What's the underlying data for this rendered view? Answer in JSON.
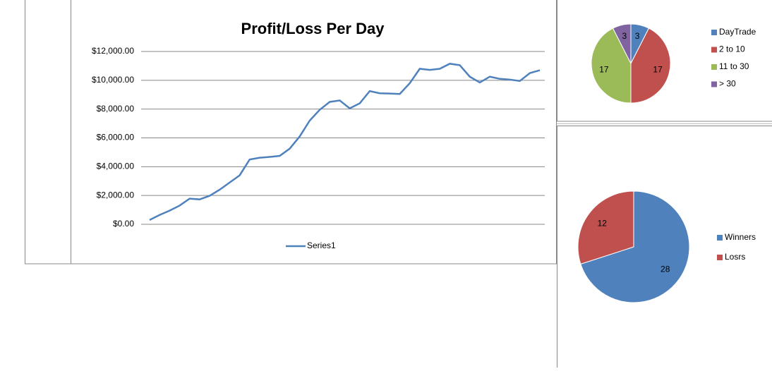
{
  "chart_data": [
    {
      "type": "line",
      "title": "Profit/Loss Per Day",
      "series": [
        {
          "name": "Series1",
          "color": "#4f81bd",
          "values": [
            300,
            650,
            950,
            1300,
            1780,
            1730,
            1980,
            2400,
            2900,
            3400,
            4500,
            4620,
            4680,
            4750,
            5250,
            6100,
            7200,
            7950,
            8500,
            8600,
            8050,
            8400,
            9250,
            9100,
            9080,
            9050,
            9800,
            10800,
            10720,
            10800,
            11150,
            11050,
            10250,
            9850,
            10250,
            10100,
            10050,
            9950,
            10500,
            10700
          ]
        }
      ],
      "ylim": [
        0,
        12000
      ],
      "yticks": [
        {
          "value": 0,
          "label": "$0.00"
        },
        {
          "value": 2000,
          "label": "$2,000.00"
        },
        {
          "value": 4000,
          "label": "$4,000.00"
        },
        {
          "value": 6000,
          "label": "$6,000.00"
        },
        {
          "value": 8000,
          "label": "$8,000.00"
        },
        {
          "value": 10000,
          "label": "$10,000.00"
        },
        {
          "value": 12000,
          "label": "$12,000.00"
        }
      ],
      "grid": true,
      "legend": "bottom"
    },
    {
      "type": "pie",
      "categories": [
        "DayTrade",
        "2 to 10",
        "11 to 30",
        "> 30"
      ],
      "values": [
        3,
        17,
        17,
        3
      ],
      "colors": [
        "#4f81bd",
        "#c0504d",
        "#9bbb59",
        "#8064a2"
      ],
      "legend": "right"
    },
    {
      "type": "pie",
      "categories": [
        "Winners",
        "Losrs"
      ],
      "values": [
        28,
        12
      ],
      "colors": [
        "#4f81bd",
        "#c0504d"
      ],
      "legend": "right"
    }
  ]
}
